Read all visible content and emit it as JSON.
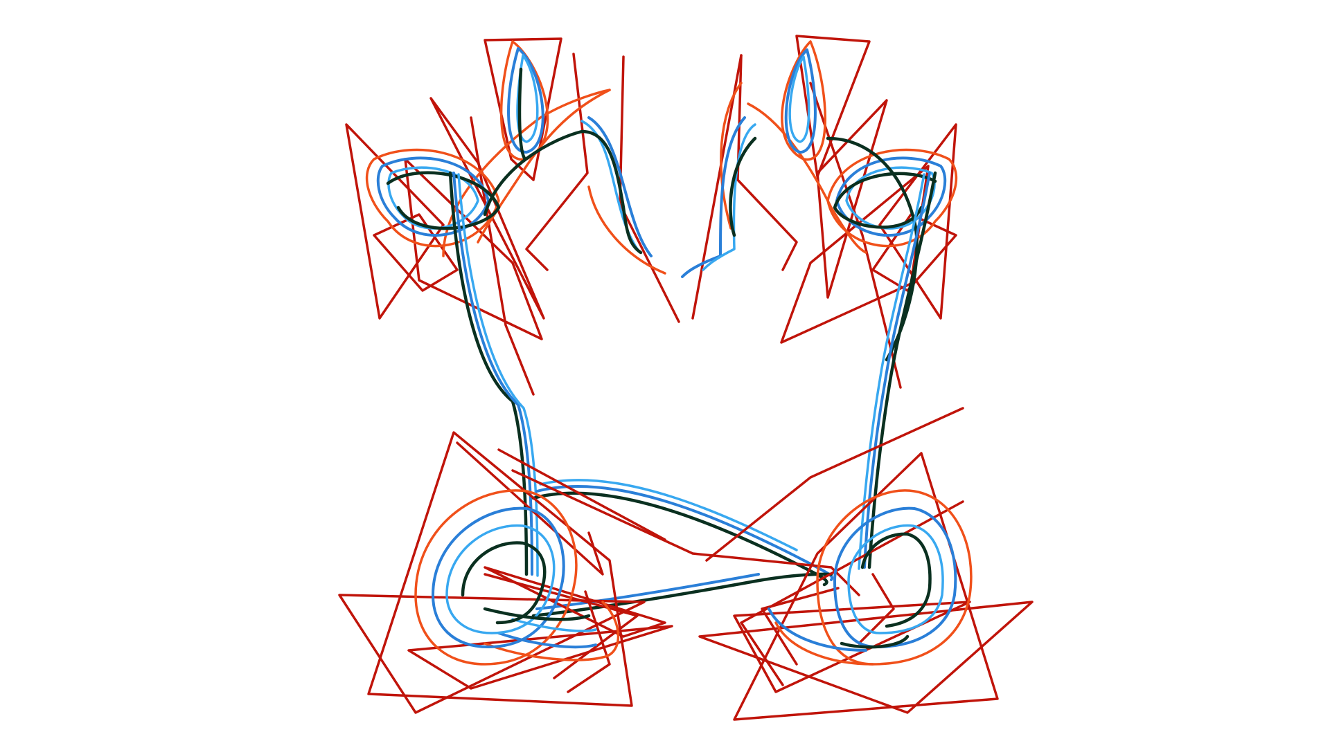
{
  "figure": {
    "title": "",
    "background": "#ffffff",
    "palette": {
      "polygon": "#c0140a",
      "outer": "#f0501a",
      "mid": "#2a7fd8",
      "inner": "#38a8f0",
      "core": "#0a3020"
    }
  }
}
